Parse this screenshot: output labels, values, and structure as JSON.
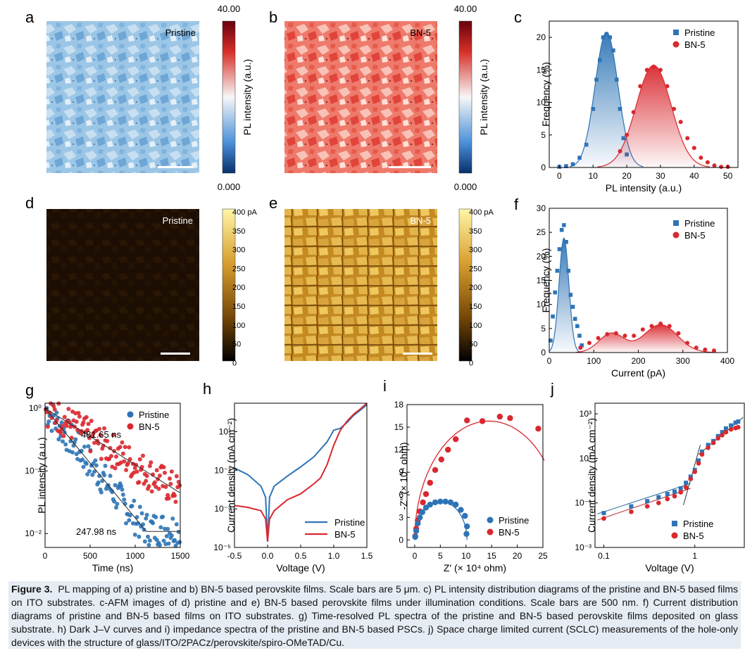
{
  "panels": {
    "a": {
      "letter": "a",
      "label": "Pristine"
    },
    "b": {
      "letter": "b",
      "label": "BN-5"
    },
    "d": {
      "letter": "d",
      "label": "Pristine"
    },
    "e": {
      "letter": "e",
      "label": "BN-5"
    },
    "pl_colorbar": {
      "max": "40.00",
      "min": "0.000",
      "title": "PL intensity (a.u.)"
    },
    "cafm_colorbar": {
      "ticks": [
        "400 pA",
        "350",
        "300",
        "250",
        "200",
        "150",
        "100",
        "50",
        "0"
      ]
    }
  },
  "colors": {
    "pristine": "#2e74b5",
    "bn5": "#d9282f",
    "cafm_dark": "#1a0d00",
    "cafm_bright": "#e8c050"
  },
  "chart_data": [
    {
      "id": "c",
      "letter": "c",
      "type": "bar+gaussian",
      "xlabel": "PL intensity (a.u.)",
      "ylabel": "Frequency (%)",
      "xlim": [
        -3,
        53
      ],
      "ylim": [
        0,
        22.5
      ],
      "xticks": [
        0,
        10,
        20,
        30,
        40,
        50
      ],
      "yticks": [
        0,
        5,
        10,
        15,
        20
      ],
      "legend": [
        "Pristine",
        "BN-5"
      ],
      "series": [
        {
          "name": "Pristine",
          "marker": "square",
          "color": "#2e74b5",
          "x": [
            0,
            2,
            4,
            6,
            8,
            10,
            11,
            12,
            13,
            14,
            15,
            16,
            17,
            18,
            19,
            20
          ],
          "y": [
            0.1,
            0.2,
            0.5,
            1.5,
            3.5,
            9.0,
            13.5,
            16.5,
            20.0,
            20.5,
            20.0,
            18.0,
            13.5,
            9.0,
            4.5,
            2.0
          ],
          "fit": {
            "mu": 14,
            "sigma": 3.4,
            "amp": 20.8
          }
        },
        {
          "name": "BN-5",
          "marker": "circle",
          "color": "#d9282f",
          "x": [
            18,
            20,
            22,
            24,
            26,
            28,
            30,
            32,
            34,
            36,
            38,
            40,
            42,
            44,
            46,
            48,
            50
          ],
          "y": [
            2.5,
            5.0,
            8.5,
            12.5,
            15.0,
            15.5,
            15.0,
            12.5,
            9.0,
            7.0,
            4.5,
            3.0,
            1.5,
            0.8,
            0.3,
            0.1,
            0.1
          ],
          "fit": {
            "mu": 28,
            "sigma": 5.2,
            "amp": 15.7
          }
        }
      ]
    },
    {
      "id": "f",
      "letter": "f",
      "type": "bar+gaussian",
      "xlabel": "Current (pA)",
      "ylabel": "Frequency (%)",
      "xlim": [
        0,
        400
      ],
      "ylim": [
        0,
        30
      ],
      "xticks": [
        0,
        100,
        200,
        300,
        400
      ],
      "yticks": [
        0,
        5,
        10,
        15,
        20,
        25,
        30
      ],
      "legend": [
        "Pristine",
        "BN-5"
      ],
      "series": [
        {
          "name": "Pristine",
          "marker": "square",
          "color": "#2e74b5",
          "x": [
            3,
            8,
            13,
            18,
            23,
            28,
            33,
            38,
            43,
            48,
            53,
            58,
            63,
            68,
            73
          ],
          "y": [
            2.5,
            7.5,
            12.5,
            17.0,
            21.5,
            25.5,
            26.5,
            23.0,
            17.0,
            12.0,
            9.5,
            7.0,
            5.5,
            3.5,
            1.5
          ],
          "fit": {
            "mu": 33,
            "sigma": 11,
            "amp": 23.8
          }
        },
        {
          "name": "BN-5",
          "marker": "circle",
          "color": "#d9282f",
          "x": [
            70,
            90,
            110,
            130,
            150,
            170,
            190,
            210,
            230,
            250,
            270,
            290,
            310,
            330,
            350,
            370
          ],
          "y": [
            1.0,
            2.0,
            3.0,
            3.8,
            4.0,
            3.5,
            3.5,
            4.8,
            5.5,
            6.0,
            5.5,
            4.0,
            2.0,
            1.0,
            0.6,
            0.4
          ],
          "fit": [
            {
              "mu": 140,
              "sigma": 28,
              "amp": 4.0
            },
            {
              "mu": 250,
              "sigma": 38,
              "amp": 5.8
            }
          ]
        }
      ]
    },
    {
      "id": "g",
      "letter": "g",
      "type": "scatter-log",
      "xlabel": "Time (ns)",
      "ylabel": "PL intensity (a.u.)",
      "xlim": [
        0,
        1500
      ],
      "ylim": [
        0.006,
        1.2
      ],
      "xticks": [
        0,
        500,
        1000,
        1500
      ],
      "yticks": [
        "10⁰",
        "10⁻¹",
        "10⁻²"
      ],
      "legend": [
        "Pristine",
        "BN-5"
      ],
      "annotations": [
        "481.65 ns",
        "247.98 ns"
      ],
      "series": [
        {
          "name": "Pristine",
          "color": "#2e74b5",
          "tau": 247.98,
          "floor": 0.012
        },
        {
          "name": "BN-5",
          "color": "#d9282f",
          "tau": 481.65,
          "floor": 0.02
        }
      ]
    },
    {
      "id": "h",
      "letter": "h",
      "type": "line-log",
      "xlabel": "Voltage (V)",
      "ylabel": "Current density (mA cm⁻²)",
      "xlim": [
        -0.5,
        1.5
      ],
      "ylim": [
        1e-05,
        300
      ],
      "xticks": [
        -0.5,
        0.0,
        0.5,
        1.0,
        1.5
      ],
      "yticks": [
        "10⁻⁵",
        "10⁻³",
        "10⁻¹",
        "10¹"
      ],
      "legend": [
        "Pristine",
        "BN-5"
      ],
      "series": [
        {
          "name": "Pristine",
          "color": "#2e74b5",
          "x": [
            -0.5,
            -0.3,
            -0.1,
            -0.03,
            0,
            0.03,
            0.1,
            0.3,
            0.5,
            0.7,
            0.9,
            1.0,
            1.1,
            1.2,
            1.3,
            1.4,
            1.5
          ],
          "y": [
            0.13,
            0.06,
            0.015,
            0.004,
            2e-05,
            0.004,
            0.015,
            0.05,
            0.15,
            0.5,
            3,
            12,
            15,
            30,
            70,
            130,
            250
          ]
        },
        {
          "name": "BN-5",
          "color": "#d9282f",
          "x": [
            -0.5,
            -0.3,
            -0.1,
            -0.03,
            0,
            0.03,
            0.1,
            0.3,
            0.5,
            0.7,
            0.8,
            0.9,
            1.0,
            1.1,
            1.2,
            1.3,
            1.4,
            1.5
          ],
          "y": [
            0.0015,
            0.0012,
            0.0008,
            0.0003,
            2e-05,
            0.0003,
            0.0008,
            0.003,
            0.006,
            0.02,
            0.04,
            0.2,
            2,
            12,
            35,
            80,
            150,
            300
          ]
        }
      ]
    },
    {
      "id": "i",
      "letter": "i",
      "type": "scatter+fit",
      "xlabel": "Z′ (× 10⁴ ohm)",
      "ylabel": "-Z″ (× 10⁴ ohm)",
      "xlim": [
        -1.5,
        25
      ],
      "ylim": [
        -1,
        18
      ],
      "xticks": [
        0,
        5,
        10,
        15,
        20,
        25
      ],
      "yticks": [
        0,
        3,
        6,
        9,
        12,
        15,
        18
      ],
      "legend": [
        "Pristine",
        "BN-5"
      ],
      "series": [
        {
          "name": "Pristine",
          "color": "#2e74b5",
          "center": 5.1,
          "radius": 5.1,
          "points": [
            [
              0.1,
              0.4
            ],
            [
              0.3,
              1.2
            ],
            [
              0.6,
              2.2
            ],
            [
              1.0,
              3.0
            ],
            [
              1.5,
              3.7
            ],
            [
              2.2,
              4.3
            ],
            [
              3.0,
              4.7
            ],
            [
              4.0,
              5.0
            ],
            [
              5.0,
              5.1
            ],
            [
              6.0,
              5.1
            ],
            [
              7.0,
              5.0
            ],
            [
              8.0,
              4.7
            ],
            [
              9.0,
              4.0
            ],
            [
              9.8,
              3.2
            ],
            [
              10.2,
              1.8
            ],
            [
              10.1,
              0.8
            ]
          ]
        },
        {
          "name": "BN-5",
          "color": "#d9282f",
          "center": 14.5,
          "radius": 14.5,
          "points": [
            [
              0.1,
              0.5
            ],
            [
              0.3,
              1.5
            ],
            [
              0.6,
              2.6
            ],
            [
              1.0,
              3.8
            ],
            [
              1.6,
              5.0
            ],
            [
              2.2,
              6.1
            ],
            [
              3.0,
              7.6
            ],
            [
              4.0,
              9.3
            ],
            [
              5.2,
              10.7
            ],
            [
              6.5,
              12.0
            ],
            [
              8.0,
              13.4
            ],
            [
              10.2,
              15.9
            ],
            [
              13.2,
              15.8
            ],
            [
              16.6,
              16.4
            ],
            [
              18.6,
              16.2
            ],
            [
              24.1,
              14.8
            ]
          ]
        }
      ]
    },
    {
      "id": "j",
      "letter": "j",
      "type": "scatter-loglog",
      "xlabel": "Voltage (V)",
      "ylabel": "Current density (mA cm⁻²)",
      "xlim": [
        0.08,
        3.5
      ],
      "ylim": [
        0.001,
        3000
      ],
      "xticks": [
        "0.1",
        "1"
      ],
      "yticks": [
        "10⁻³",
        "10⁻¹",
        "10¹",
        "10³"
      ],
      "legend": [
        "Pristine",
        "BN-5"
      ],
      "series": [
        {
          "name": "Pristine",
          "marker": "square",
          "color": "#2e74b5",
          "x": [
            0.1,
            0.2,
            0.3,
            0.4,
            0.5,
            0.6,
            0.7,
            0.8,
            0.9,
            1.0,
            1.1,
            1.2,
            1.4,
            1.6,
            1.8,
            2.0,
            2.2,
            2.5,
            2.8,
            3.0
          ],
          "y": [
            0.035,
            0.07,
            0.12,
            0.18,
            0.25,
            0.32,
            0.45,
            0.8,
            1.5,
            3,
            8,
            20,
            40,
            60,
            100,
            150,
            220,
            300,
            400,
            450
          ]
        },
        {
          "name": "BN-5",
          "marker": "circle",
          "color": "#d9282f",
          "x": [
            0.1,
            0.2,
            0.3,
            0.4,
            0.5,
            0.6,
            0.7,
            0.8,
            0.9,
            1.0,
            1.1,
            1.2,
            1.4,
            1.6,
            1.8,
            2.0,
            2.2,
            2.5,
            2.8,
            3.0
          ],
          "y": [
            0.02,
            0.04,
            0.07,
            0.1,
            0.15,
            0.2,
            0.3,
            0.5,
            1.2,
            2.5,
            6,
            15,
            30,
            50,
            80,
            110,
            150,
            200,
            230,
            250
          ]
        }
      ]
    }
  ],
  "caption": {
    "title": "Figure 3.",
    "text": "PL mapping of a) pristine and b) BN-5 based perovskite films. Scale bars are 5 μm. c) PL intensity distribution diagrams of the pristine and BN-5 based films on ITO substrates. c-AFM images of d) pristine and e) BN-5 based perovskite films under illumination conditions. Scale bars are 500 nm. f) Current distribution diagrams of pristine and BN-5 based films on ITO substrates. g) Time-resolved PL spectra of the pristine and BN-5 based perovskite films deposited on glass substrate. h) Dark J–V curves and i) impedance spectra of the pristine and BN-5 based PSCs. j) Space charge limited current (SCLC) measurements of the hole-only devices with the structure of glass/ITO/2PACz/perovskite/spiro-OMeTAD/Cu."
  }
}
